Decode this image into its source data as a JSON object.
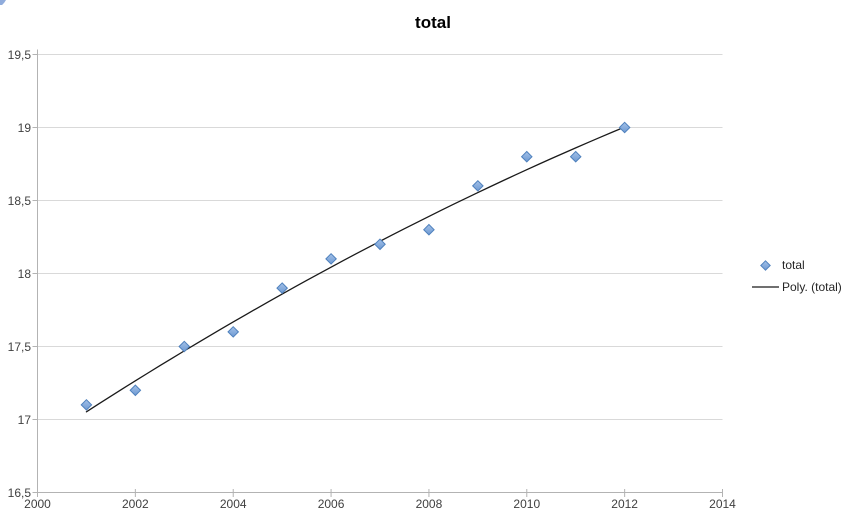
{
  "page": {
    "background": "#ffffff"
  },
  "artifacts": {
    "corner_fragment_color": "#7d9ed6"
  },
  "chart_data": {
    "type": "scatter",
    "title": "total",
    "xlabel": "",
    "ylabel": "",
    "x": [
      2001,
      2002,
      2003,
      2004,
      2005,
      2006,
      2007,
      2008,
      2009,
      2010,
      2011,
      2012
    ],
    "series": [
      {
        "name": "total",
        "values": [
          17.1,
          17.2,
          17.5,
          17.6,
          17.9,
          18.1,
          18.2,
          18.3,
          18.6,
          18.8,
          18.8,
          19.0
        ]
      }
    ],
    "trendline": {
      "label": "Poly. (total)",
      "type": "polynomial",
      "order": 2,
      "coefficients": [
        16.834,
        0.2224,
        -0.00347
      ],
      "x_domain_offset": 2000,
      "x_start": 2001,
      "x_end": 2012
    },
    "xlim": [
      2000,
      2014
    ],
    "ylim": [
      16.5,
      19.5
    ],
    "xticks": {
      "values": [
        2000,
        2002,
        2004,
        2006,
        2008,
        2010,
        2012,
        2014
      ],
      "labels": [
        "2000",
        "2002",
        "2004",
        "2006",
        "2008",
        "2010",
        "2012",
        "2014"
      ]
    },
    "yticks": {
      "values": [
        16.5,
        17,
        17.5,
        18,
        18.5,
        19,
        19.5
      ],
      "labels": [
        "16,5",
        "17",
        "17,5",
        "18",
        "18,5",
        "19",
        "19,5"
      ]
    },
    "grid": "horizontal",
    "legend_position": "right",
    "colors": {
      "marker_fill_top": "#a3c1e8",
      "marker_fill_bottom": "#6e99d2",
      "marker_stroke": "#4f81bd",
      "trendline": "#1a1a1a",
      "gridline": "#d9d9d9",
      "axis": "#b3b3b3",
      "tick_label": "#404040",
      "title": "#000000"
    }
  }
}
